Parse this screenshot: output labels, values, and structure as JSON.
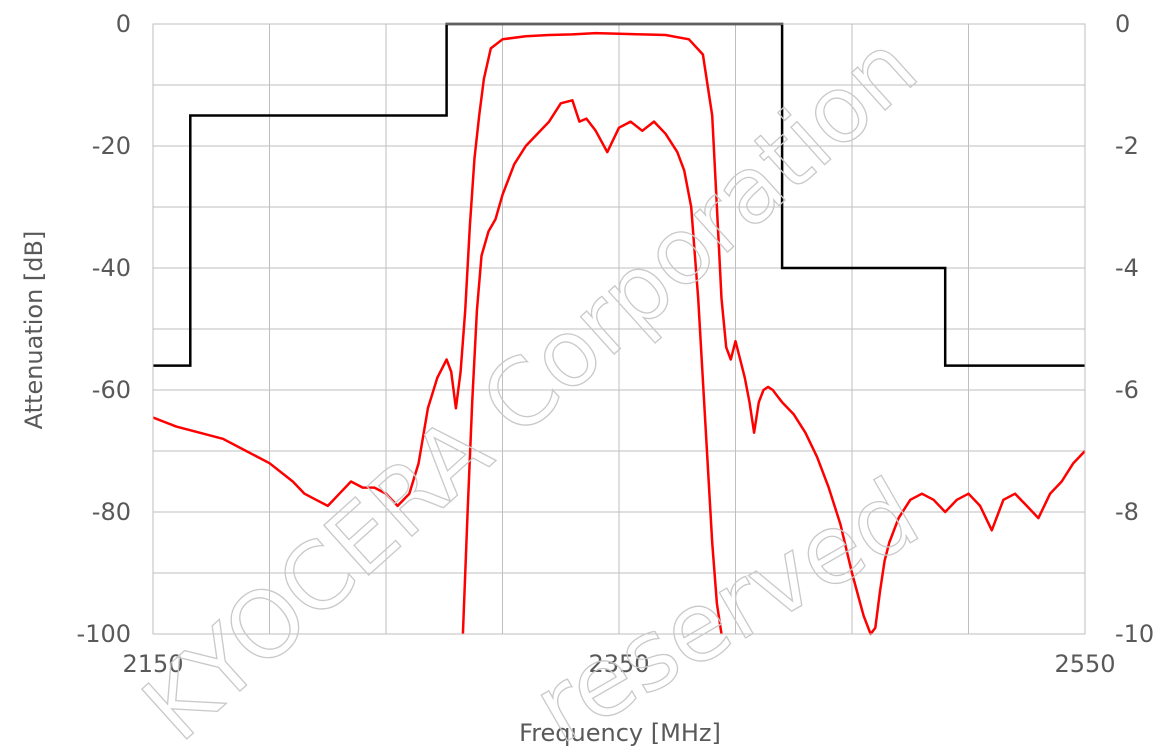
{
  "chart_data": {
    "type": "line",
    "title": "",
    "xlabel": "Frequency [MHz]",
    "ylabel": "Attenuation  [dB]",
    "xlim": [
      2150,
      2550
    ],
    "ylim": [
      -100,
      0
    ],
    "y2lim": [
      -10,
      0
    ],
    "x_ticks_labeled": [
      "2150",
      "2350",
      "2550"
    ],
    "x_grid_step": 50,
    "y_ticks": [
      "0",
      "-20",
      "-40",
      "-60",
      "-80",
      "-100"
    ],
    "y2_ticks": [
      "0",
      "-2",
      "-4",
      "-6",
      "-8",
      "-10"
    ],
    "grid": true,
    "legend": "none",
    "colors": {
      "response": "#ff0000",
      "mask": "#000000",
      "grid": "#bfbfbf",
      "text": "#595959"
    },
    "series": [
      {
        "axis": "left",
        "color": "#ff0000",
        "x": [
          2150,
          2160,
          2170,
          2180,
          2190,
          2200,
          2210,
          2215,
          2220,
          2225,
          2230,
          2235,
          2240,
          2245,
          2250,
          2255,
          2260,
          2264,
          2268,
          2272,
          2276,
          2278,
          2280,
          2282,
          2284,
          2286,
          2288,
          2290,
          2292,
          2295,
          2300,
          2310,
          2320,
          2330,
          2340,
          2350,
          2360,
          2370,
          2380,
          2386,
          2390,
          2392,
          2394,
          2396,
          2398,
          2400,
          2402,
          2404,
          2406,
          2408,
          2410,
          2412,
          2414,
          2416,
          2418,
          2420,
          2425,
          2430,
          2435,
          2440,
          2445,
          2450,
          2455,
          2458,
          2460,
          2462,
          2464,
          2466,
          2470,
          2475,
          2480,
          2485,
          2490,
          2495,
          2500,
          2505,
          2510,
          2515,
          2520,
          2525,
          2530,
          2535,
          2540,
          2545,
          2550
        ],
        "y": [
          -64.5,
          -66,
          -67,
          -68,
          -70,
          -72,
          -75,
          -77,
          -78,
          -79,
          -77,
          -75,
          -76,
          -76,
          -77,
          -79,
          -77,
          -72,
          -63,
          -58,
          -55,
          -57,
          -63,
          -57,
          -47,
          -33,
          -22,
          -15,
          -9,
          -4,
          -2.5,
          -2,
          -1.8,
          -1.7,
          -1.5,
          -1.6,
          -1.7,
          -1.8,
          -2.5,
          -5,
          -15,
          -30,
          -45,
          -53,
          -55,
          -52,
          -55,
          -58,
          -62,
          -67,
          -62,
          -60,
          -59.5,
          -60,
          -61,
          -62,
          -64,
          -67,
          -71,
          -76,
          -82,
          -90,
          -97,
          -100,
          -99,
          -93,
          -88,
          -85,
          -81,
          -78,
          -77,
          -78,
          -80,
          -78,
          -77,
          -79,
          -83,
          -78,
          -77,
          -79,
          -81,
          -77,
          -75,
          -72,
          -70
        ]
      },
      {
        "axis": "right",
        "color": "#ff0000",
        "x": [
          2283,
          2285,
          2287,
          2289,
          2291,
          2294,
          2297,
          2300,
          2305,
          2310,
          2315,
          2320,
          2325,
          2330,
          2333,
          2336,
          2340,
          2345,
          2350,
          2355,
          2360,
          2365,
          2370,
          2375,
          2378,
          2381,
          2384,
          2387,
          2390,
          2392,
          2394
        ],
        "y": [
          -10,
          -8,
          -6.2,
          -4.7,
          -3.8,
          -3.4,
          -3.2,
          -2.8,
          -2.3,
          -2.0,
          -1.8,
          -1.6,
          -1.3,
          -1.25,
          -1.6,
          -1.55,
          -1.75,
          -2.1,
          -1.7,
          -1.6,
          -1.75,
          -1.6,
          -1.8,
          -2.1,
          -2.4,
          -3.0,
          -4.5,
          -6.5,
          -8.5,
          -9.5,
          -10
        ]
      }
    ],
    "mask": {
      "axis": "left",
      "color": "#000000",
      "x": [
        2150,
        2166,
        2166,
        2276,
        2276,
        2420,
        2420,
        2490,
        2490,
        2550
      ],
      "y": [
        -56,
        -56,
        -15,
        -15,
        0,
        0,
        -40,
        -40,
        -56,
        -56
      ]
    },
    "watermark_text": [
      "KYOCERA Corporation",
      "reserved"
    ]
  }
}
